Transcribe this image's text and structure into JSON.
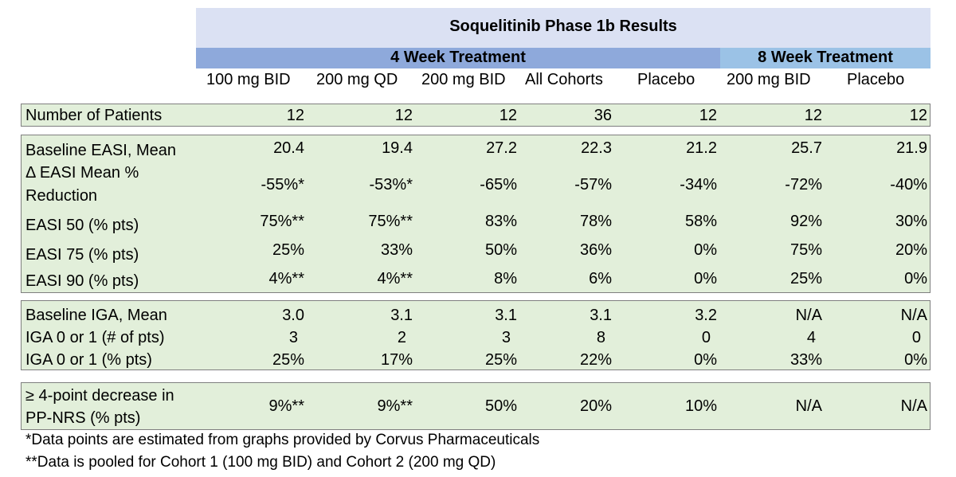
{
  "title": "Soquelitinib Phase 1b Results",
  "groups": [
    {
      "label": "4 Week Treatment"
    },
    {
      "label": "8 Week Treatment"
    }
  ],
  "columns": [
    "100 mg BID",
    "200 mg QD",
    "200 mg BID",
    "All Cohorts",
    "Placebo",
    "200 mg BID",
    "Placebo"
  ],
  "sections": [
    {
      "rows": [
        {
          "label": "Number of Patients",
          "values": [
            "12",
            "12",
            "12",
            "36",
            "12",
            "12",
            "12"
          ]
        }
      ]
    },
    {
      "rows": [
        {
          "label": "Baseline EASI, Mean",
          "values": [
            "20.4",
            "19.4",
            "27.2",
            "22.3",
            "21.2",
            "25.7",
            "21.9"
          ]
        },
        {
          "label_lines": [
            "Δ EASI Mean %",
            "Reduction"
          ],
          "values": [
            "-55%*",
            "-53%*",
            "-65%",
            "-57%",
            "-34%",
            "-72%",
            "-40%"
          ]
        },
        {
          "label": "EASI 50 (% pts)",
          "values": [
            "75%**",
            "75%**",
            "83%",
            "78%",
            "58%",
            "92%",
            "30%"
          ]
        },
        {
          "label": "EASI 75 (% pts)",
          "values": [
            "25%",
            "33%",
            "50%",
            "36%",
            "0%",
            "75%",
            "20%"
          ]
        },
        {
          "label": "EASI 90 (% pts)",
          "values": [
            "4%**",
            "4%**",
            "8%",
            "6%",
            "0%",
            "25%",
            "0%"
          ]
        }
      ]
    },
    {
      "rows": [
        {
          "label": "Baseline IGA, Mean",
          "values": [
            "3.0",
            "3.1",
            "3.1",
            "3.1",
            "3.2",
            "N/A",
            "N/A"
          ]
        },
        {
          "label": "IGA 0 or 1 (# of pts)",
          "values": [
            "3",
            "2",
            "3",
            "8",
            "0",
            "4",
            "0"
          ]
        },
        {
          "label": "IGA 0 or 1 (% pts)",
          "values": [
            "25%",
            "17%",
            "25%",
            "22%",
            "0%",
            "33%",
            "0%"
          ]
        }
      ]
    },
    {
      "rows": [
        {
          "label_lines": [
            "≥ 4-point decrease in",
            "PP-NRS (% pts)"
          ],
          "values": [
            "9%**",
            "9%**",
            "50%",
            "20%",
            "10%",
            "N/A",
            "N/A"
          ]
        }
      ]
    }
  ],
  "footnotes": [
    "*Data points are estimated from graphs provided by Corvus Pharmaceuticals",
    "**Data is pooled for Cohort 1 (100 mg BID) and Cohort 2 (200 mg QD)"
  ]
}
